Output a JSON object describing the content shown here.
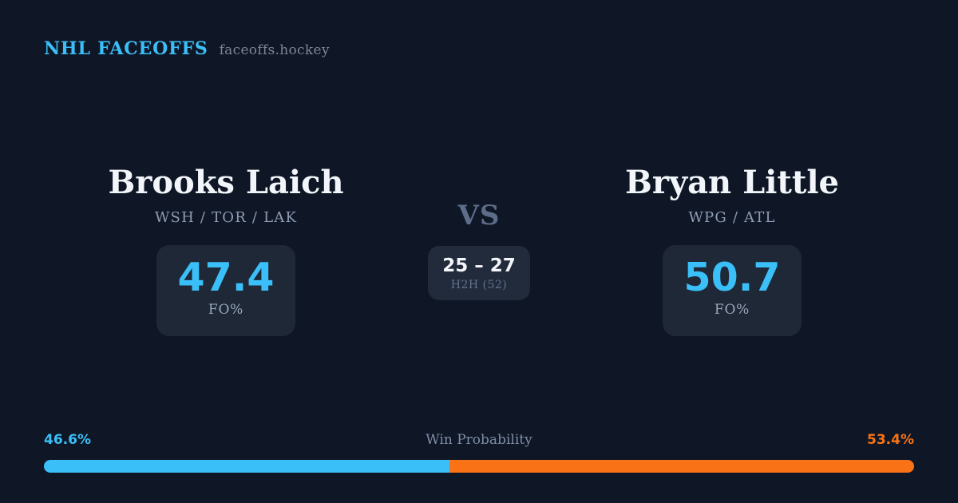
{
  "brand": {
    "title": "NHL FACEOFFS",
    "site": "faceoffs.hockey"
  },
  "players": {
    "left": {
      "name": "Brooks Laich",
      "teams": "WSH / TOR / LAK",
      "fo_value": "47.4",
      "fo_label": "FO%"
    },
    "right": {
      "name": "Bryan Little",
      "teams": "WPG / ATL",
      "fo_value": "50.7",
      "fo_label": "FO%"
    }
  },
  "center": {
    "vs_label": "VS",
    "h2h_score": "25 – 27",
    "h2h_sub": "H2H (52)"
  },
  "win_probability": {
    "title": "Win Probability",
    "left_label": "46.6%",
    "right_label": "53.4%",
    "left_value": 46.6,
    "right_value": 53.4
  },
  "colors": {
    "background": "#0f1726",
    "card": "#1e2836",
    "accent_blue": "#3abff8",
    "accent_orange": "#f97316",
    "text_primary": "#f2f5f9",
    "text_muted": "#8e9cb3"
  }
}
